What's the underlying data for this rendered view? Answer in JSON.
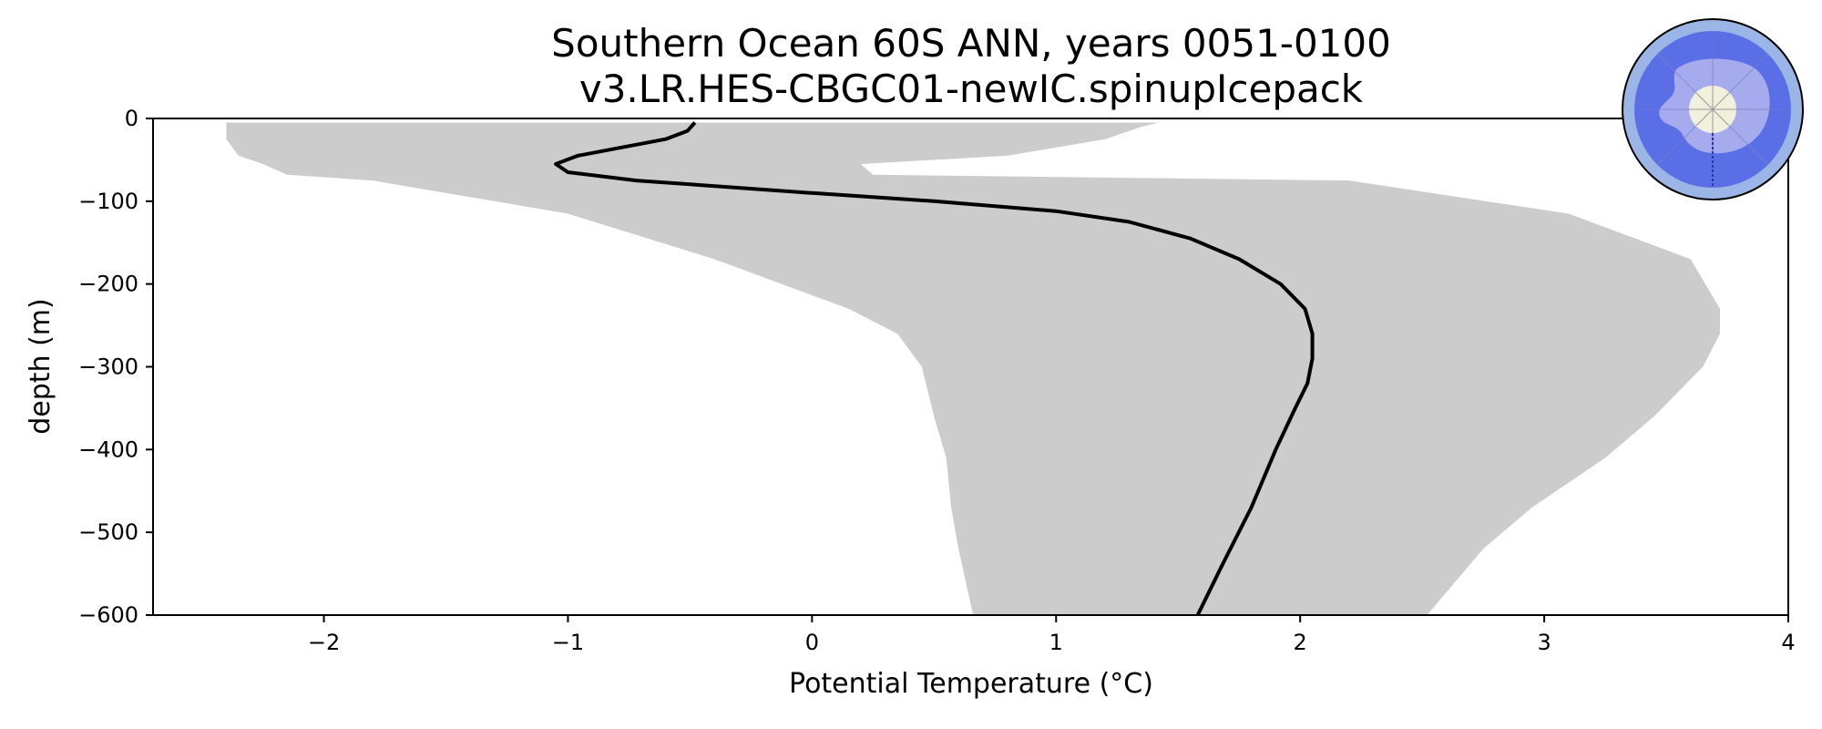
{
  "chart_data": {
    "type": "line",
    "title": "Southern Ocean 60S ANN, years 0051-0100",
    "subtitle": "v3.LR.HES-CBGC01-newIC.spinupIcepack",
    "xlabel": "Potential Temperature (°C)",
    "ylabel": "depth (m)",
    "xlim": [
      -2.7,
      4.0
    ],
    "ylim": [
      -600,
      0
    ],
    "xticks": [
      -2,
      -1,
      0,
      1,
      2,
      3,
      4
    ],
    "xtick_labels": [
      "−2",
      "−1",
      "0",
      "1",
      "2",
      "3",
      "4"
    ],
    "yticks": [
      0,
      -100,
      -200,
      -300,
      -400,
      -500,
      -600
    ],
    "ytick_labels": [
      "0",
      "−100",
      "−200",
      "−300",
      "−400",
      "−500",
      "−600"
    ],
    "grid": false,
    "legend": "none",
    "inset": "south-polar-map",
    "colors": {
      "mean_line": "#000000",
      "spread_fill": "#cccccc",
      "map_ocean": "#5a6fe6",
      "map_land": "#a6abee",
      "map_edge": "#9bb6e6",
      "map_pole": "#f0f0dc"
    },
    "series": [
      {
        "role": "mean",
        "x": [
          -0.48,
          -0.51,
          -0.6,
          -0.96,
          -1.05,
          -1.0,
          -0.72,
          0.0,
          0.5,
          1.0,
          1.3,
          1.55,
          1.75,
          1.92,
          2.02,
          2.05,
          2.05,
          2.03,
          1.98,
          1.9,
          1.8,
          1.68,
          1.58
        ],
        "y": [
          -5,
          -15,
          -25,
          -45,
          -55,
          -65,
          -75,
          -90,
          -100,
          -112,
          -125,
          -145,
          -170,
          -200,
          -230,
          -260,
          -290,
          -320,
          -350,
          -400,
          -470,
          -540,
          -600
        ]
      },
      {
        "role": "spread",
        "lower_x": [
          -2.4,
          -2.4,
          -2.4,
          -2.35,
          -2.25,
          -2.15,
          -1.8,
          -1.0,
          -0.4,
          0.15,
          0.35,
          0.45,
          0.5,
          0.55,
          0.57,
          0.6,
          0.66
        ],
        "upper_x": [
          1.42,
          1.35,
          1.2,
          0.8,
          0.2,
          0.25,
          2.2,
          3.1,
          3.6,
          3.72,
          3.72,
          3.65,
          3.45,
          3.25,
          2.95,
          2.75,
          2.52
        ],
        "y": [
          -5,
          -10,
          -25,
          -45,
          -55,
          -68,
          -75,
          -115,
          -170,
          -230,
          -260,
          -300,
          -360,
          -410,
          -470,
          -520,
          -600
        ]
      }
    ]
  }
}
